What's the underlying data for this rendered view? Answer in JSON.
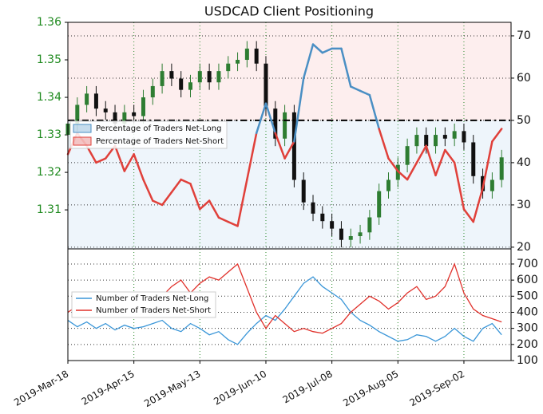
{
  "chart_data": [
    {
      "type": "candlestick",
      "title": "USDCAD Client Positioning",
      "x": [
        0,
        4,
        8,
        12,
        16,
        20,
        24,
        28,
        32,
        36,
        40,
        44,
        48,
        52,
        56,
        60,
        64,
        68,
        72,
        76,
        80,
        84,
        88,
        92,
        96,
        100,
        104,
        108,
        112,
        116,
        120,
        124,
        128,
        132,
        136,
        140,
        144,
        148,
        152,
        156,
        160,
        164,
        168,
        172,
        176,
        180,
        184
      ],
      "open": [
        1.33,
        1.333,
        1.338,
        1.341,
        1.337,
        1.336,
        1.333,
        1.336,
        1.335,
        1.34,
        1.343,
        1.347,
        1.345,
        1.342,
        1.344,
        1.347,
        1.344,
        1.347,
        1.349,
        1.35,
        1.353,
        1.349,
        1.337,
        1.329,
        1.336,
        1.318,
        1.312,
        1.309,
        1.307,
        1.305,
        1.302,
        1.303,
        1.304,
        1.308,
        1.315,
        1.318,
        1.322,
        1.327,
        1.33,
        1.327,
        1.33,
        1.329,
        1.331,
        1.328,
        1.319,
        1.315,
        1.318
      ],
      "high": [
        1.335,
        1.34,
        1.343,
        1.343,
        1.339,
        1.338,
        1.338,
        1.338,
        1.342,
        1.345,
        1.349,
        1.349,
        1.347,
        1.346,
        1.349,
        1.349,
        1.349,
        1.351,
        1.352,
        1.355,
        1.355,
        1.351,
        1.339,
        1.338,
        1.338,
        1.32,
        1.314,
        1.311,
        1.309,
        1.307,
        1.305,
        1.306,
        1.31,
        1.317,
        1.32,
        1.324,
        1.329,
        1.332,
        1.332,
        1.332,
        1.332,
        1.333,
        1.333,
        1.33,
        1.321,
        1.32,
        1.326
      ],
      "low": [
        1.328,
        1.331,
        1.336,
        1.335,
        1.334,
        1.331,
        1.331,
        1.333,
        1.333,
        1.338,
        1.341,
        1.343,
        1.34,
        1.34,
        1.342,
        1.342,
        1.342,
        1.345,
        1.347,
        1.348,
        1.347,
        1.335,
        1.327,
        1.327,
        1.316,
        1.31,
        1.307,
        1.305,
        1.303,
        1.3,
        1.3,
        1.301,
        1.302,
        1.306,
        1.313,
        1.316,
        1.32,
        1.325,
        1.325,
        1.325,
        1.327,
        1.327,
        1.326,
        1.317,
        1.313,
        1.313,
        1.316
      ],
      "close": [
        1.333,
        1.338,
        1.341,
        1.337,
        1.336,
        1.333,
        1.336,
        1.335,
        1.34,
        1.343,
        1.347,
        1.345,
        1.342,
        1.344,
        1.347,
        1.344,
        1.347,
        1.349,
        1.35,
        1.353,
        1.349,
        1.337,
        1.329,
        1.336,
        1.318,
        1.312,
        1.309,
        1.307,
        1.305,
        1.302,
        1.303,
        1.304,
        1.308,
        1.315,
        1.318,
        1.322,
        1.327,
        1.33,
        1.327,
        1.33,
        1.329,
        1.331,
        1.328,
        1.319,
        1.315,
        1.318,
        1.324
      ],
      "up_color": "#2e7d32",
      "down_color": "#111111",
      "ylim": [
        1.2996,
        1.36
      ],
      "yticks": [
        1.31,
        1.32,
        1.33,
        1.34,
        1.35,
        1.36
      ],
      "y2lim": [
        19.6,
        73.2
      ],
      "y2ticks": [
        20,
        30,
        40,
        50,
        60,
        70
      ],
      "threshold": 50,
      "series": [
        {
          "axis": "y2",
          "values": [
            42,
            47,
            44,
            40,
            41,
            44,
            38,
            42,
            36,
            31,
            30,
            33,
            36,
            35,
            29,
            31,
            27,
            26,
            25,
            36,
            47,
            54,
            47,
            41,
            45,
            60,
            68,
            66,
            67,
            67,
            58,
            57,
            56,
            48,
            41,
            38,
            36,
            40,
            44,
            37,
            43,
            40,
            29,
            26,
            34,
            45,
            48
          ]
        }
      ],
      "legend": [
        {
          "name": "Percentage of Traders Net-Long",
          "color": "#4a8fc4"
        },
        {
          "name": "Percentage of Traders Net-Short",
          "color": "#e0403a"
        }
      ],
      "grid": true
    },
    {
      "type": "line",
      "x": [
        0,
        4,
        8,
        12,
        16,
        20,
        24,
        28,
        32,
        36,
        40,
        44,
        48,
        52,
        56,
        60,
        64,
        68,
        72,
        76,
        80,
        84,
        88,
        92,
        96,
        100,
        104,
        108,
        112,
        116,
        120,
        124,
        128,
        132,
        136,
        140,
        144,
        148,
        152,
        156,
        160,
        164,
        168,
        172,
        176,
        180,
        184
      ],
      "xlim": [
        0,
        188
      ],
      "xticks": [
        {
          "value": 0,
          "label": "2019-Mar-18"
        },
        {
          "value": 28,
          "label": "2019-Apr-15"
        },
        {
          "value": 56,
          "label": "2019-May-13"
        },
        {
          "value": 84,
          "label": "2019-Jun-10"
        },
        {
          "value": 112,
          "label": "2019-Jul-08"
        },
        {
          "value": 140,
          "label": "2019-Aug-05"
        },
        {
          "value": 168,
          "label": "2019-Sep-02"
        }
      ],
      "ylim": [
        100,
        794
      ],
      "yticks": [
        100,
        200,
        300,
        400,
        500,
        600,
        700
      ],
      "series": [
        {
          "name": "Number of Traders Net-Long",
          "color": "#3a96d8",
          "values": [
            350,
            310,
            340,
            300,
            330,
            290,
            320,
            300,
            310,
            330,
            350,
            300,
            280,
            330,
            300,
            260,
            280,
            230,
            200,
            270,
            330,
            380,
            350,
            420,
            500,
            580,
            620,
            560,
            520,
            480,
            400,
            350,
            320,
            280,
            250,
            220,
            230,
            260,
            250,
            220,
            250,
            300,
            250,
            220,
            300,
            330,
            260
          ]
        },
        {
          "name": "Number of Traders Net-Short",
          "color": "#e0302a",
          "values": [
            400,
            440,
            380,
            420,
            460,
            380,
            430,
            410,
            400,
            450,
            500,
            560,
            600,
            520,
            580,
            620,
            600,
            650,
            700,
            550,
            400,
            300,
            380,
            330,
            280,
            300,
            280,
            270,
            300,
            330,
            400,
            450,
            500,
            470,
            420,
            460,
            520,
            560,
            480,
            500,
            560,
            700,
            520,
            420,
            380,
            360,
            340
          ]
        }
      ],
      "grid": true
    }
  ]
}
